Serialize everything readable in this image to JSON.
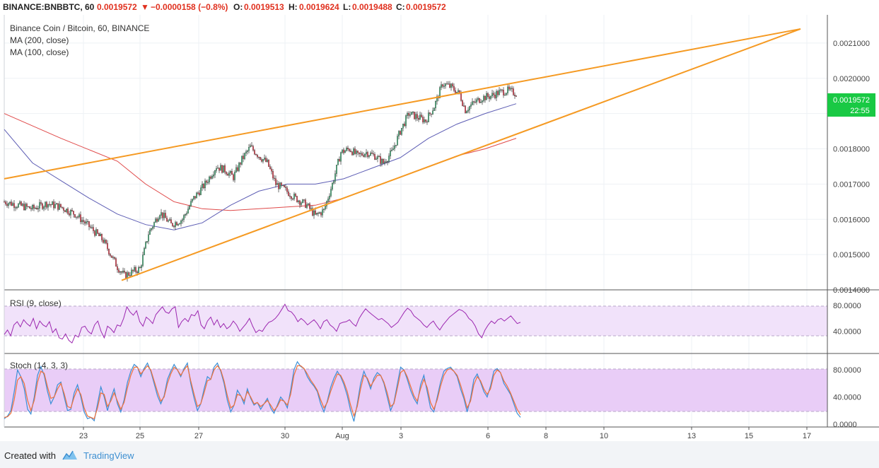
{
  "header": {
    "symbol": "BINANCE:BNBBTC, 60",
    "last": "0.0019572",
    "change_arrow": "▼",
    "change": "−0.0000158 (−0.8%)",
    "o_label": "O:",
    "o_value": "0.0019513",
    "h_label": "H:",
    "h_value": "0.0019624",
    "l_label": "L:",
    "l_value": "0.0019488",
    "c_label": "C:",
    "c_value": "0.0019572"
  },
  "legend": {
    "title": "Binance Coin / Bitcoin, 60, BINANCE",
    "ma200": "MA (200, close)",
    "ma100": "MA (100, close)"
  },
  "price_label": {
    "value": "0.0019572",
    "countdown": "22:55"
  },
  "footer": {
    "created": "Created with",
    "brand": "TradingView"
  },
  "colors": {
    "up": "#53b987",
    "down": "#eb4d5c",
    "ma200": "#e04a4a",
    "ma100": "#5d5db4",
    "trend": "#f59a23",
    "rsi": "#9c27b0",
    "stoch_k": "#3a8fd6",
    "stoch_d": "#f0703a",
    "band": "#e8c9f5",
    "price_tag": "#19c944"
  },
  "chart_data": [
    {
      "type": "candlestick",
      "title": "Binance Coin / Bitcoin, 60, BINANCE",
      "ylim": [
        0.0014,
        0.00218
      ],
      "x_ticks": [
        "23",
        "25",
        "27",
        "30",
        "Aug",
        "3",
        "6",
        "8",
        "10",
        "13",
        "15",
        "17"
      ],
      "y_ticks": [
        "0.0014000",
        "0.0015000",
        "0.0016000",
        "0.0017000",
        "0.0018000",
        "0.0019000",
        "0.0020000",
        "0.0021000"
      ],
      "price_path": [
        [
          0,
          0.00165
        ],
        [
          10,
          0.00164
        ],
        [
          20,
          0.00163
        ],
        [
          30,
          0.001645
        ],
        [
          40,
          0.001635
        ],
        [
          50,
          0.001615
        ],
        [
          60,
          0.00158
        ],
        [
          70,
          0.00154
        ],
        [
          80,
          0.001465
        ],
        [
          85,
          0.00144
        ],
        [
          90,
          0.00145
        ],
        [
          96,
          0.00146
        ],
        [
          102,
          0.00156
        ],
        [
          110,
          0.00162
        ],
        [
          118,
          0.001585
        ],
        [
          126,
          0.0016
        ],
        [
          134,
          0.00166
        ],
        [
          142,
          0.0017
        ],
        [
          150,
          0.00175
        ],
        [
          156,
          0.00174
        ],
        [
          162,
          0.00172
        ],
        [
          168,
          0.00177
        ],
        [
          174,
          0.001805
        ],
        [
          180,
          0.00178
        ],
        [
          186,
          0.00176
        ],
        [
          192,
          0.0017
        ],
        [
          198,
          0.001685
        ],
        [
          206,
          0.00166
        ],
        [
          214,
          0.00164
        ],
        [
          220,
          0.00161
        ],
        [
          226,
          0.001625
        ],
        [
          232,
          0.0017
        ],
        [
          238,
          0.00179
        ],
        [
          244,
          0.0018
        ],
        [
          250,
          0.00178
        ],
        [
          256,
          0.00179
        ],
        [
          262,
          0.00178
        ],
        [
          268,
          0.00176
        ],
        [
          274,
          0.00179
        ],
        [
          280,
          0.00185
        ],
        [
          286,
          0.0019
        ],
        [
          292,
          0.00189
        ],
        [
          298,
          0.00188
        ],
        [
          304,
          0.00192
        ],
        [
          310,
          0.001985
        ],
        [
          316,
          0.001975
        ],
        [
          322,
          0.001955
        ],
        [
          326,
          0.00191
        ],
        [
          332,
          0.00193
        ],
        [
          338,
          0.001945
        ],
        [
          344,
          0.00195
        ],
        [
          350,
          0.00196
        ],
        [
          356,
          0.001965
        ],
        [
          362,
          0.001957
        ]
      ],
      "series": [
        {
          "name": "MA (200, close)",
          "points": [
            [
              0,
              0.0019
            ],
            [
              40,
              0.00183
            ],
            [
              80,
              0.001765
            ],
            [
              100,
              0.0017
            ],
            [
              120,
              0.00165
            ],
            [
              140,
              0.00163
            ],
            [
              160,
              0.001625
            ],
            [
              180,
              0.00163
            ],
            [
              200,
              0.001635
            ],
            [
              220,
              0.00164
            ],
            [
              240,
              0.00166
            ],
            [
              260,
              0.00169
            ],
            [
              280,
              0.00172
            ],
            [
              300,
              0.00175
            ],
            [
              320,
              0.00178
            ],
            [
              340,
              0.0018
            ],
            [
              362,
              0.00183
            ]
          ]
        },
        {
          "name": "MA (100, close)",
          "points": [
            [
              0,
              0.001855
            ],
            [
              20,
              0.00176
            ],
            [
              40,
              0.00171
            ],
            [
              60,
              0.00166
            ],
            [
              80,
              0.001615
            ],
            [
              100,
              0.001585
            ],
            [
              120,
              0.00157
            ],
            [
              140,
              0.00159
            ],
            [
              160,
              0.00164
            ],
            [
              180,
              0.00168
            ],
            [
              200,
              0.0017
            ],
            [
              220,
              0.0017
            ],
            [
              240,
              0.001715
            ],
            [
              260,
              0.001745
            ],
            [
              280,
              0.001775
            ],
            [
              300,
              0.00183
            ],
            [
              320,
              0.00187
            ],
            [
              340,
              0.0019
            ],
            [
              362,
              0.001928
            ]
          ]
        }
      ],
      "trendlines": [
        {
          "from": [
            0,
            0.001715
          ],
          "to": [
            563,
            0.00214
          ]
        },
        {
          "from": [
            83,
            0.001427
          ],
          "to": [
            563,
            0.00214
          ]
        }
      ]
    },
    {
      "type": "line",
      "title": "RSI (9, close)",
      "ylim": [
        10,
        100
      ],
      "bands": [
        30,
        70
      ],
      "y_ticks": [
        "40.0000",
        "80.0000"
      ],
      "values": [
        35,
        42,
        33,
        50,
        55,
        47,
        58,
        52,
        48,
        60,
        44,
        56,
        50,
        47,
        55,
        38,
        44,
        30,
        28,
        36,
        26,
        22,
        34,
        31,
        46,
        48,
        40,
        36,
        50,
        56,
        40,
        30,
        48,
        44,
        38,
        50,
        48,
        60,
        78,
        70,
        65,
        72,
        55,
        48,
        62,
        58,
        52,
        66,
        72,
        78,
        70,
        68,
        75,
        78,
        46,
        55,
        60,
        55,
        66,
        64,
        72,
        50,
        44,
        56,
        62,
        50,
        58,
        46,
        52,
        44,
        48,
        56,
        50,
        40,
        46,
        52,
        60,
        48,
        38,
        42,
        40,
        48,
        54,
        56,
        60,
        66,
        74,
        82,
        72,
        70,
        64,
        55,
        60,
        56,
        50,
        54,
        58,
        52,
        44,
        55,
        58,
        50,
        46,
        40,
        52,
        54,
        55,
        58,
        52,
        48,
        60,
        68,
        75,
        70,
        66,
        62,
        58,
        60,
        56,
        52,
        46,
        50,
        54,
        62,
        70,
        76,
        72,
        64,
        60,
        56,
        50,
        46,
        52,
        56,
        48,
        42,
        50,
        56,
        62,
        66,
        70,
        74,
        72,
        68,
        60,
        56,
        48,
        36,
        30,
        42,
        50,
        56,
        52,
        58,
        60,
        56,
        60,
        64,
        58,
        52,
        54
      ]
    },
    {
      "type": "line",
      "title": "Stoch (14, 3, 3)",
      "ylim": [
        0,
        100
      ],
      "bands": [
        20,
        80
      ],
      "y_ticks": [
        "0.0000",
        "40.0000",
        "80.0000"
      ],
      "series": [
        {
          "name": "%K",
          "values": [
            8,
            12,
            20,
            48,
            80,
            70,
            52,
            22,
            15,
            40,
            72,
            85,
            72,
            48,
            30,
            40,
            58,
            62,
            40,
            20,
            22,
            46,
            58,
            40,
            18,
            8,
            10,
            5,
            30,
            55,
            40,
            20,
            38,
            52,
            30,
            18,
            36,
            62,
            78,
            88,
            84,
            70,
            82,
            90,
            78,
            60,
            42,
            30,
            42,
            66,
            78,
            88,
            80,
            70,
            82,
            90,
            60,
            38,
            20,
            30,
            52,
            70,
            66,
            84,
            90,
            78,
            60,
            35,
            18,
            28,
            50,
            42,
            30,
            52,
            38,
            28,
            32,
            22,
            30,
            38,
            24,
            16,
            28,
            40,
            34,
            24,
            50,
            80,
            92,
            85,
            82,
            70,
            62,
            56,
            48,
            30,
            18,
            34,
            54,
            68,
            78,
            70,
            58,
            42,
            20,
            4,
            30,
            60,
            78,
            66,
            52,
            68,
            76,
            72,
            60,
            40,
            20,
            32,
            58,
            84,
            80,
            66,
            50,
            38,
            30,
            58,
            72,
            48,
            24,
            18,
            40,
            62,
            78,
            82,
            84,
            78,
            70,
            52,
            38,
            18,
            38,
            66,
            74,
            62,
            48,
            40,
            56,
            78,
            82,
            76,
            60,
            52,
            44,
            30,
            16,
            10
          ]
        },
        {
          "name": "%D",
          "values": [
            10,
            11,
            16,
            36,
            65,
            70,
            60,
            35,
            20,
            35,
            62,
            78,
            75,
            55,
            38,
            40,
            52,
            60,
            45,
            26,
            24,
            40,
            52,
            44,
            24,
            12,
            10,
            8,
            24,
            46,
            44,
            26,
            34,
            46,
            34,
            22,
            32,
            54,
            72,
            84,
            84,
            74,
            80,
            86,
            80,
            64,
            48,
            34,
            40,
            60,
            74,
            84,
            80,
            72,
            80,
            86,
            64,
            44,
            26,
            30,
            46,
            64,
            66,
            80,
            86,
            80,
            64,
            42,
            24,
            28,
            44,
            42,
            34,
            48,
            40,
            30,
            32,
            26,
            30,
            35,
            28,
            20,
            26,
            36,
            34,
            28,
            44,
            72,
            86,
            86,
            82,
            74,
            65,
            58,
            50,
            36,
            24,
            32,
            48,
            62,
            74,
            72,
            62,
            48,
            28,
            12,
            26,
            52,
            72,
            68,
            56,
            64,
            72,
            72,
            62,
            46,
            26,
            30,
            52,
            76,
            80,
            70,
            56,
            42,
            34,
            52,
            66,
            54,
            32,
            22,
            36,
            56,
            72,
            80,
            82,
            78,
            72,
            58,
            42,
            24,
            34,
            58,
            70,
            64,
            52,
            44,
            52,
            72,
            80,
            76,
            64,
            56,
            46,
            34,
            22,
            14
          ]
        }
      ]
    }
  ]
}
